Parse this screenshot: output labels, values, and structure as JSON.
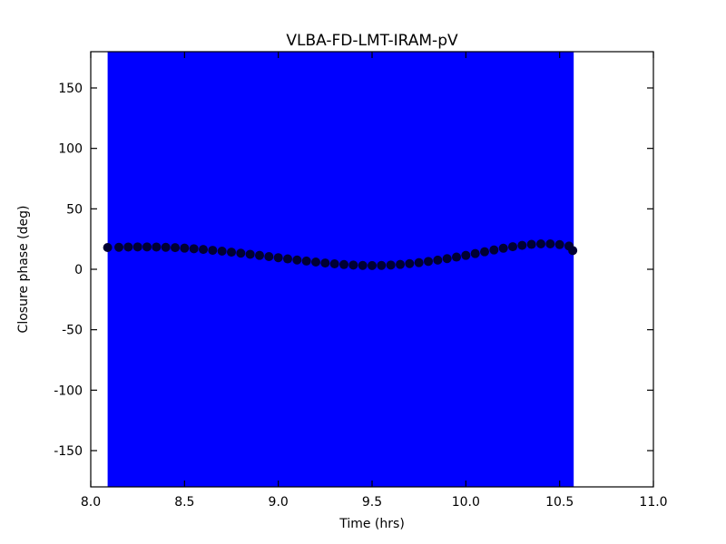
{
  "figure": {
    "background_color": "#ffffff",
    "frame_color": "#000000"
  },
  "chart_data": {
    "type": "scatter",
    "title": "VLBA-FD-LMT-IRAM-pV",
    "xlabel": "Time (hrs)",
    "ylabel": "Closure phase (deg)",
    "xlim": [
      8.0,
      11.0
    ],
    "ylim": [
      -180,
      180
    ],
    "grid": false,
    "legend": "none",
    "xticks": {
      "values": [
        8.0,
        8.5,
        9.0,
        9.5,
        10.0,
        10.5,
        11.0
      ],
      "labels": [
        "8.0",
        "8.5",
        "9.0",
        "9.5",
        "10.0",
        "10.5",
        "11.0"
      ]
    },
    "yticks": {
      "values": [
        -150,
        -100,
        -50,
        0,
        50,
        100,
        150
      ],
      "labels": [
        "-150",
        "-100",
        "-50",
        "0",
        "50",
        "100",
        "150"
      ]
    },
    "error_band": {
      "note": "error bars span the entire y-range at every sample, forming a solid band",
      "x_start": 8.09,
      "x_end": 10.575,
      "y_min": -180,
      "y_max": 180,
      "color": "#0000ff"
    },
    "series": [
      {
        "name": "closure-phase",
        "marker": "circle",
        "marker_radius": 5,
        "color": "#000033",
        "x": [
          8.09,
          8.15,
          8.2,
          8.25,
          8.3,
          8.35,
          8.4,
          8.45,
          8.5,
          8.55,
          8.6,
          8.65,
          8.7,
          8.75,
          8.8,
          8.85,
          8.9,
          8.95,
          9.0,
          9.05,
          9.1,
          9.15,
          9.2,
          9.25,
          9.3,
          9.35,
          9.4,
          9.45,
          9.5,
          9.55,
          9.6,
          9.65,
          9.7,
          9.75,
          9.8,
          9.85,
          9.9,
          9.95,
          10.0,
          10.05,
          10.1,
          10.15,
          10.2,
          10.25,
          10.3,
          10.35,
          10.4,
          10.45,
          10.5,
          10.55,
          10.57
        ],
        "y": [
          18.0,
          18.2,
          18.4,
          18.5,
          18.5,
          18.4,
          18.2,
          17.9,
          17.5,
          17.0,
          16.4,
          15.7,
          15.0,
          14.2,
          13.3,
          12.4,
          11.5,
          10.5,
          9.6,
          8.6,
          7.7,
          6.8,
          6.0,
          5.2,
          4.5,
          3.9,
          3.5,
          3.2,
          3.1,
          3.2,
          3.5,
          4.0,
          4.7,
          5.5,
          6.5,
          7.6,
          8.8,
          10.1,
          11.5,
          13.0,
          14.5,
          16.0,
          17.4,
          18.7,
          19.8,
          20.6,
          21.0,
          21.0,
          20.4,
          19.2,
          15.5
        ]
      }
    ]
  }
}
